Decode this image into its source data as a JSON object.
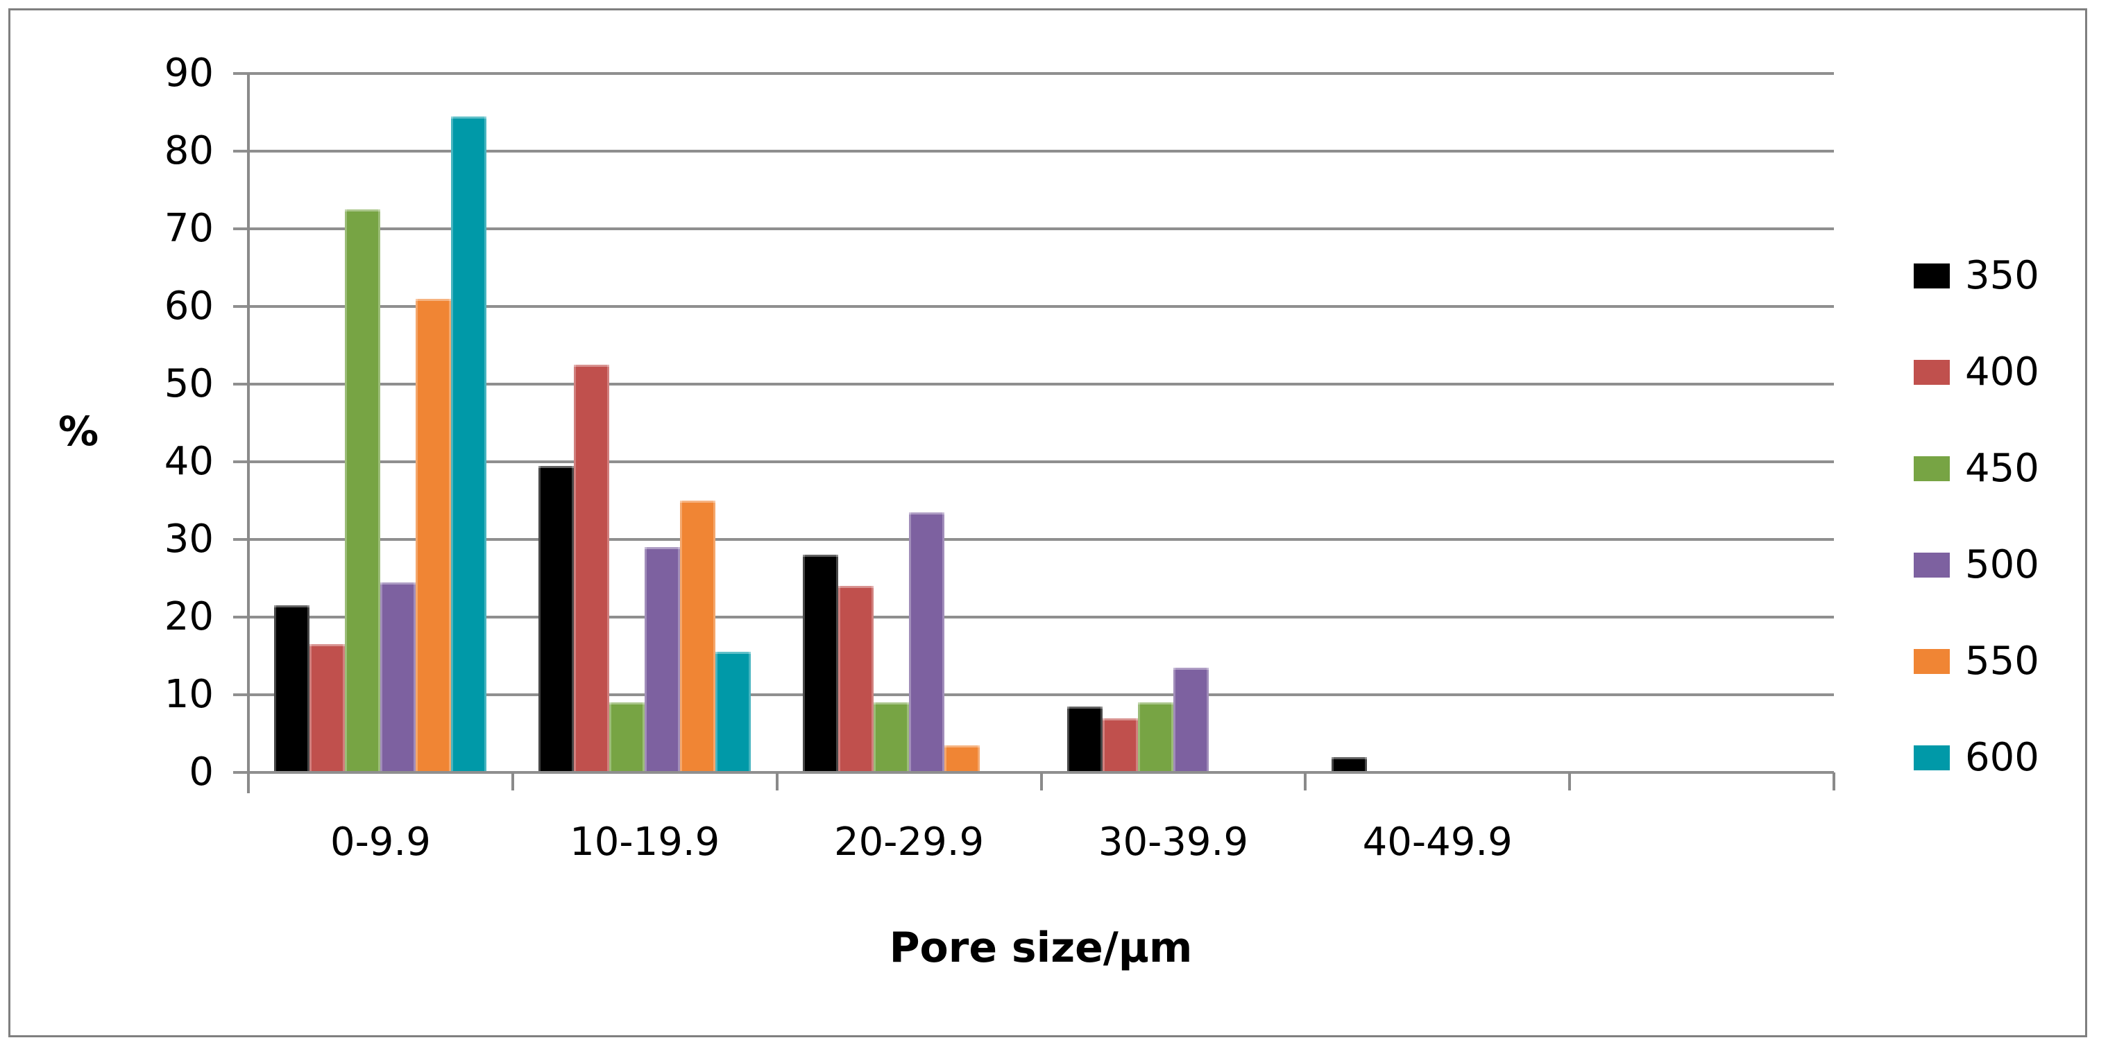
{
  "chart_data": {
    "type": "bar",
    "title": "",
    "categories": [
      "0-9.9",
      "10-19.9",
      "20-29.9",
      "30-39.9",
      "40-49.9"
    ],
    "series": [
      {
        "name": "350",
        "color": "#000000",
        "values": [
          21.5,
          39.5,
          28,
          8.5,
          2
        ]
      },
      {
        "name": "400",
        "color": "#C0504D",
        "values": [
          16.5,
          52.5,
          24,
          7,
          0
        ]
      },
      {
        "name": "450",
        "color": "#77A444",
        "values": [
          72.5,
          9,
          9,
          9,
          0
        ]
      },
      {
        "name": "500",
        "color": "#7D61A0",
        "values": [
          24.5,
          29,
          33.5,
          13.5,
          0
        ]
      },
      {
        "name": "550",
        "color": "#F08534",
        "values": [
          61,
          35,
          3.5,
          0,
          0
        ]
      },
      {
        "name": "600",
        "color": "#0099A8",
        "values": [
          84.5,
          15.5,
          0,
          0,
          0
        ]
      }
    ],
    "xlabel": "Pore size/μm",
    "ylabel": "%",
    "ylim": [
      0,
      90
    ],
    "y_ticks": [
      90,
      80,
      70,
      60,
      50,
      40,
      30,
      20,
      10,
      0
    ],
    "grid": true,
    "legend_position": "right",
    "empty_trailing_slots": 1
  },
  "colors": {
    "background": "#FFFFFF",
    "frame": "#7F7F7F",
    "grid": "#8F8F8F",
    "axis": "#8A8A8A",
    "text": "#000000"
  }
}
